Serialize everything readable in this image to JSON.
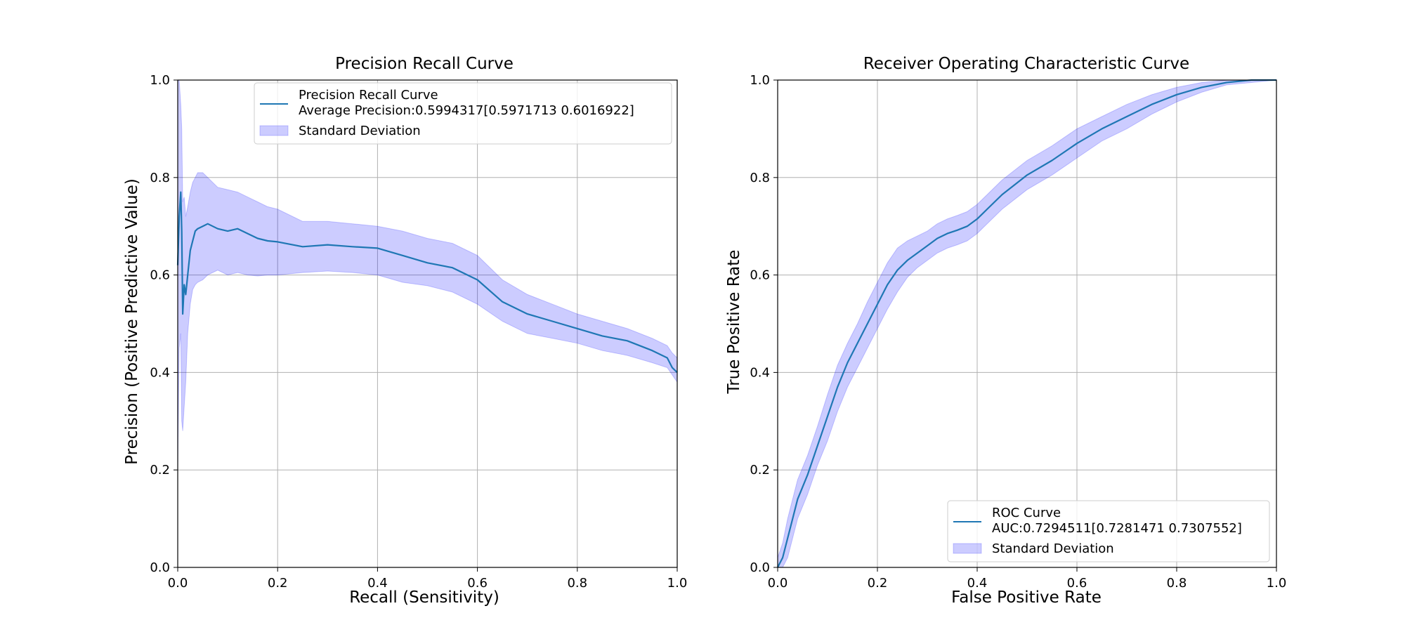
{
  "colors": {
    "line": "#1f77b4",
    "band_fill": "#0000ff",
    "band_alpha": 0.2,
    "grid": "#b0b0b0",
    "axes": "#000000"
  },
  "chart_data": [
    {
      "type": "line",
      "title": "Precision Recall Curve",
      "xlabel": "Recall (Sensitivity)",
      "ylabel": "Precision (Positive Predictive Value)",
      "xlim": [
        0.0,
        1.0
      ],
      "ylim": [
        0.0,
        1.0
      ],
      "xticks": [
        "0.0",
        "0.2",
        "0.4",
        "0.6",
        "0.8",
        "1.0"
      ],
      "yticks": [
        "0.0",
        "0.2",
        "0.4",
        "0.6",
        "0.8",
        "1.0"
      ],
      "grid": true,
      "legend_position": "top-right",
      "legend": {
        "line_label": "Precision Recall Curve",
        "line_sublabel": "Average Precision:0.5994317[0.5971713 0.6016922]",
        "band_label": "Standard Deviation"
      },
      "series": [
        {
          "x": [
            0.0,
            0.003,
            0.006,
            0.008,
            0.01,
            0.013,
            0.016,
            0.02,
            0.025,
            0.03,
            0.035,
            0.04,
            0.05,
            0.06,
            0.08,
            0.1,
            0.12,
            0.14,
            0.16,
            0.18,
            0.2,
            0.25,
            0.3,
            0.35,
            0.4,
            0.45,
            0.5,
            0.55,
            0.6,
            0.65,
            0.7,
            0.75,
            0.8,
            0.85,
            0.9,
            0.95,
            0.98,
            0.99,
            1.0
          ],
          "y": [
            0.62,
            0.72,
            0.77,
            0.69,
            0.52,
            0.58,
            0.56,
            0.6,
            0.65,
            0.67,
            0.69,
            0.695,
            0.7,
            0.705,
            0.695,
            0.69,
            0.695,
            0.685,
            0.675,
            0.67,
            0.668,
            0.658,
            0.662,
            0.658,
            0.655,
            0.64,
            0.625,
            0.615,
            0.59,
            0.545,
            0.52,
            0.505,
            0.49,
            0.475,
            0.465,
            0.445,
            0.43,
            0.41,
            0.4
          ],
          "lower": [
            0.2,
            0.45,
            0.48,
            0.3,
            0.28,
            0.33,
            0.38,
            0.48,
            0.54,
            0.57,
            0.58,
            0.585,
            0.59,
            0.6,
            0.61,
            0.6,
            0.605,
            0.6,
            0.598,
            0.6,
            0.6,
            0.605,
            0.608,
            0.605,
            0.6,
            0.585,
            0.578,
            0.565,
            0.54,
            0.505,
            0.48,
            0.47,
            0.46,
            0.445,
            0.435,
            0.42,
            0.41,
            0.395,
            0.38
          ],
          "upper": [
            1.0,
            1.0,
            0.95,
            0.9,
            0.75,
            0.76,
            0.72,
            0.74,
            0.77,
            0.79,
            0.8,
            0.81,
            0.81,
            0.8,
            0.78,
            0.775,
            0.77,
            0.76,
            0.75,
            0.74,
            0.735,
            0.71,
            0.71,
            0.705,
            0.7,
            0.69,
            0.675,
            0.665,
            0.64,
            0.59,
            0.56,
            0.54,
            0.52,
            0.505,
            0.49,
            0.47,
            0.455,
            0.44,
            0.43
          ]
        }
      ]
    },
    {
      "type": "line",
      "title": "Receiver Operating Characteristic Curve",
      "xlabel": "False Positive Rate",
      "ylabel": "True Positive Rate",
      "xlim": [
        0.0,
        1.0
      ],
      "ylim": [
        0.0,
        1.0
      ],
      "xticks": [
        "0.0",
        "0.2",
        "0.4",
        "0.6",
        "0.8",
        "1.0"
      ],
      "yticks": [
        "0.0",
        "0.2",
        "0.4",
        "0.6",
        "0.8",
        "1.0"
      ],
      "grid": true,
      "legend_position": "lower-right",
      "legend": {
        "line_label": "ROC Curve",
        "line_sublabel": "AUC:0.7294511[0.7281471 0.7307552]",
        "band_label": "Standard Deviation"
      },
      "series": [
        {
          "x": [
            0.0,
            0.01,
            0.02,
            0.03,
            0.04,
            0.06,
            0.08,
            0.1,
            0.12,
            0.14,
            0.16,
            0.18,
            0.2,
            0.22,
            0.24,
            0.26,
            0.28,
            0.3,
            0.32,
            0.34,
            0.36,
            0.38,
            0.4,
            0.42,
            0.45,
            0.5,
            0.55,
            0.6,
            0.65,
            0.7,
            0.75,
            0.8,
            0.85,
            0.9,
            0.95,
            1.0
          ],
          "y": [
            0.0,
            0.02,
            0.06,
            0.1,
            0.14,
            0.19,
            0.25,
            0.31,
            0.37,
            0.42,
            0.46,
            0.5,
            0.54,
            0.58,
            0.61,
            0.63,
            0.645,
            0.66,
            0.675,
            0.685,
            0.692,
            0.7,
            0.715,
            0.735,
            0.765,
            0.805,
            0.835,
            0.87,
            0.9,
            0.925,
            0.95,
            0.97,
            0.985,
            0.995,
            1.0,
            1.0
          ],
          "lower": [
            0.0,
            0.0,
            0.02,
            0.06,
            0.1,
            0.15,
            0.21,
            0.26,
            0.32,
            0.37,
            0.41,
            0.45,
            0.49,
            0.53,
            0.565,
            0.595,
            0.615,
            0.63,
            0.645,
            0.655,
            0.662,
            0.67,
            0.685,
            0.705,
            0.735,
            0.775,
            0.805,
            0.84,
            0.875,
            0.9,
            0.93,
            0.955,
            0.975,
            0.99,
            0.995,
            1.0
          ],
          "upper": [
            0.02,
            0.05,
            0.1,
            0.14,
            0.18,
            0.23,
            0.29,
            0.355,
            0.415,
            0.46,
            0.5,
            0.545,
            0.585,
            0.625,
            0.655,
            0.67,
            0.68,
            0.69,
            0.705,
            0.715,
            0.722,
            0.73,
            0.745,
            0.765,
            0.795,
            0.835,
            0.865,
            0.9,
            0.925,
            0.95,
            0.97,
            0.985,
            0.995,
            1.0,
            1.0,
            1.0
          ]
        }
      ]
    }
  ]
}
